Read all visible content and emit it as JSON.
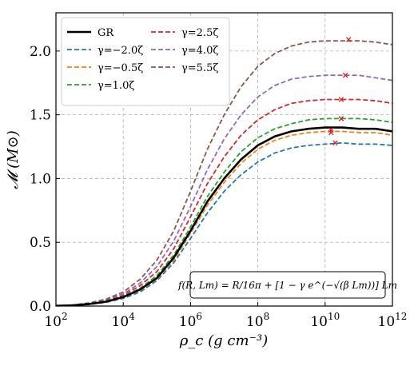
{
  "chart_data": {
    "type": "line",
    "xlabel": "ρ_c (g cm⁻³)",
    "ylabel": "𝓜 (M⊙)",
    "x_scale": "log",
    "xlim": [
      100,
      1000000000000
    ],
    "ylim": [
      0.0,
      2.3
    ],
    "grid": true,
    "legend_position": "upper-left",
    "x_ticks": [
      {
        "base": "10",
        "exp": "2",
        "value": 100
      },
      {
        "base": "10",
        "exp": "4",
        "value": 10000
      },
      {
        "base": "10",
        "exp": "6",
        "value": 1000000
      },
      {
        "base": "10",
        "exp": "8",
        "value": 100000000
      },
      {
        "base": "10",
        "exp": "10",
        "value": 10000000000
      },
      {
        "base": "10",
        "exp": "12",
        "value": 1000000000000
      }
    ],
    "y_ticks": [
      "0.0",
      "0.5",
      "1.0",
      "1.5",
      "2.0"
    ],
    "annotation": "f(R, Lm) = R/16π + [1 − γ e^(−√(β Lm))] Lm",
    "x": [
      100,
      316,
      1000,
      3162,
      10000,
      31623,
      100000,
      316228,
      1000000,
      3162278,
      10000000,
      31622777,
      100000000,
      316227766,
      1000000000,
      3162277660,
      10000000000,
      31622776602,
      100000000000,
      316227766017,
      1000000000000
    ],
    "series": [
      {
        "name": "GR",
        "color": "#000000",
        "dash": "solid",
        "width": 2.6,
        "values": [
          0.002,
          0.006,
          0.016,
          0.035,
          0.07,
          0.13,
          0.22,
          0.38,
          0.59,
          0.82,
          1.0,
          1.15,
          1.26,
          1.33,
          1.37,
          1.39,
          1.4,
          1.4,
          1.39,
          1.39,
          1.37
        ],
        "max_point": [
          15000000000,
          1.38
        ]
      },
      {
        "name": "γ=−2.0ζ",
        "color": "#1f77b4",
        "dash": "dashed",
        "width": 1.8,
        "values": [
          0.002,
          0.005,
          0.014,
          0.03,
          0.06,
          0.11,
          0.2,
          0.34,
          0.53,
          0.73,
          0.9,
          1.03,
          1.13,
          1.2,
          1.24,
          1.26,
          1.27,
          1.28,
          1.27,
          1.27,
          1.26
        ],
        "max_point": [
          20000000000,
          1.28
        ]
      },
      {
        "name": "γ=−0.5ζ",
        "color": "#ff7f0e",
        "dash": "dashed",
        "width": 1.8,
        "values": [
          0.002,
          0.006,
          0.015,
          0.033,
          0.067,
          0.125,
          0.21,
          0.36,
          0.57,
          0.79,
          0.97,
          1.12,
          1.23,
          1.3,
          1.34,
          1.36,
          1.37,
          1.37,
          1.36,
          1.36,
          1.34
        ],
        "max_point": [
          15000000000,
          1.36
        ]
      },
      {
        "name": "γ=1.0ζ",
        "color": "#2ca02c",
        "dash": "dashed",
        "width": 1.8,
        "values": [
          0.002,
          0.006,
          0.017,
          0.037,
          0.074,
          0.14,
          0.24,
          0.4,
          0.62,
          0.86,
          1.05,
          1.21,
          1.32,
          1.39,
          1.43,
          1.46,
          1.47,
          1.47,
          1.47,
          1.46,
          1.44
        ],
        "max_point": [
          30000000000,
          1.47
        ]
      },
      {
        "name": "γ=2.5ζ",
        "color": "#d62728",
        "dash": "dashed",
        "width": 1.8,
        "values": [
          0.002,
          0.007,
          0.019,
          0.042,
          0.084,
          0.16,
          0.27,
          0.45,
          0.7,
          0.96,
          1.17,
          1.34,
          1.46,
          1.54,
          1.59,
          1.61,
          1.62,
          1.62,
          1.62,
          1.61,
          1.59
        ],
        "max_point": [
          30000000000,
          1.62
        ]
      },
      {
        "name": "γ=4.0ζ",
        "color": "#9467bd",
        "dash": "dashed",
        "width": 1.8,
        "values": [
          0.002,
          0.008,
          0.022,
          0.048,
          0.096,
          0.18,
          0.31,
          0.51,
          0.78,
          1.07,
          1.31,
          1.5,
          1.64,
          1.73,
          1.78,
          1.8,
          1.81,
          1.81,
          1.81,
          1.79,
          1.77
        ],
        "max_point": [
          40000000000,
          1.81
        ]
      },
      {
        "name": "γ=5.5ζ",
        "color": "#8c564b",
        "dash": "dashed",
        "width": 1.8,
        "values": [
          0.002,
          0.009,
          0.025,
          0.055,
          0.11,
          0.21,
          0.36,
          0.59,
          0.9,
          1.23,
          1.5,
          1.72,
          1.88,
          1.98,
          2.04,
          2.07,
          2.08,
          2.08,
          2.08,
          2.07,
          2.05
        ],
        "max_point": [
          50000000000,
          2.09
        ]
      }
    ],
    "max_marker_color": "#e41a1c"
  }
}
